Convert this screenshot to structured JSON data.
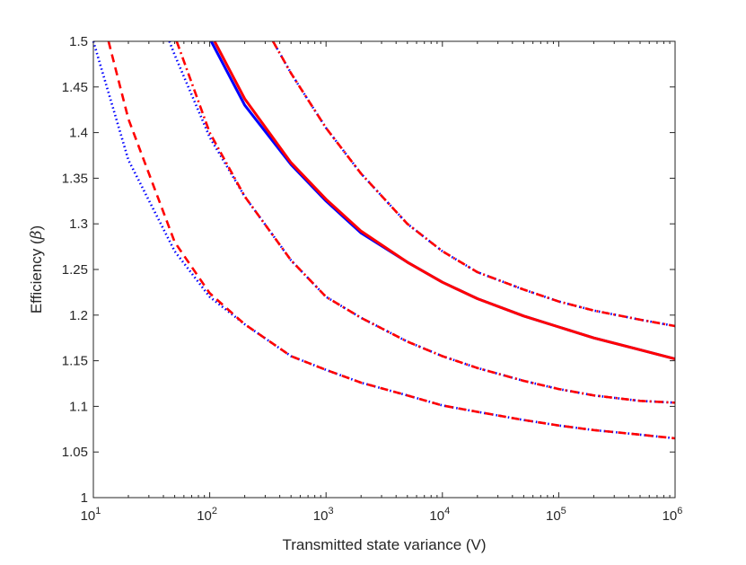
{
  "chart_data": {
    "type": "line",
    "xlabel": "Transmitted state variance (V)",
    "ylabel_text": "Efficiency (",
    "ylabel_symbol": "β",
    "ylabel_close": ")",
    "xscale": "log",
    "xlim": [
      10,
      1000000
    ],
    "ylim": [
      1,
      1.5
    ],
    "grid": false,
    "legend": "none",
    "x_ticks": [
      {
        "base": "10",
        "exp": "1",
        "value": 10
      },
      {
        "base": "10",
        "exp": "2",
        "value": 100
      },
      {
        "base": "10",
        "exp": "3",
        "value": 1000
      },
      {
        "base": "10",
        "exp": "4",
        "value": 10000
      },
      {
        "base": "10",
        "exp": "5",
        "value": 100000
      },
      {
        "base": "10",
        "exp": "6",
        "value": 1000000
      }
    ],
    "y_ticks": [
      "1",
      "1.05",
      "1.1",
      "1.15",
      "1.2",
      "1.25",
      "1.3",
      "1.35",
      "1.4",
      "1.45",
      "1.5"
    ],
    "series": [
      {
        "color": "#0000ff",
        "style": "dotted",
        "x": [
          10,
          20,
          50,
          100,
          200,
          500,
          1000,
          2000,
          5000,
          10000,
          20000,
          50000,
          100000,
          200000,
          500000,
          1000000
        ],
        "y": [
          1.5,
          1.37,
          1.27,
          1.22,
          1.19,
          1.155,
          1.14,
          1.126,
          1.112,
          1.101,
          1.094,
          1.085,
          1.079,
          1.074,
          1.069,
          1.065
        ]
      },
      {
        "color": "#ff0000",
        "style": "dashed",
        "x": [
          13.5,
          20,
          50,
          100,
          200,
          500,
          1000,
          2000,
          5000,
          10000,
          20000,
          50000,
          100000,
          200000,
          500000,
          1000000
        ],
        "y": [
          1.5,
          1.415,
          1.28,
          1.224,
          1.19,
          1.155,
          1.14,
          1.126,
          1.112,
          1.101,
          1.094,
          1.085,
          1.079,
          1.074,
          1.069,
          1.065
        ]
      },
      {
        "color": "#0000ff",
        "style": "dotted",
        "x": [
          45,
          50,
          100,
          200,
          500,
          1000,
          2000,
          5000,
          10000,
          20000,
          50000,
          100000,
          200000,
          500000,
          1000000
        ],
        "y": [
          1.5,
          1.485,
          1.395,
          1.33,
          1.26,
          1.22,
          1.197,
          1.171,
          1.155,
          1.142,
          1.128,
          1.119,
          1.112,
          1.106,
          1.104
        ]
      },
      {
        "color": "#ff0000",
        "style": "dashdot",
        "x": [
          52,
          100,
          200,
          500,
          1000,
          2000,
          5000,
          10000,
          20000,
          50000,
          100000,
          200000,
          500000,
          1000000
        ],
        "y": [
          1.5,
          1.4,
          1.33,
          1.26,
          1.22,
          1.197,
          1.171,
          1.155,
          1.142,
          1.128,
          1.119,
          1.112,
          1.106,
          1.104
        ]
      },
      {
        "color": "#0000ff",
        "style": "solid",
        "x": [
          103,
          200,
          500,
          1000,
          2000,
          5000,
          10000,
          20000,
          50000,
          100000,
          200000,
          500000,
          1000000
        ],
        "y": [
          1.5,
          1.43,
          1.365,
          1.325,
          1.29,
          1.258,
          1.236,
          1.218,
          1.199,
          1.187,
          1.175,
          1.162,
          1.152
        ]
      },
      {
        "color": "#ff0000",
        "style": "solid",
        "x": [
          110,
          200,
          500,
          1000,
          2000,
          5000,
          10000,
          20000,
          50000,
          100000,
          200000,
          500000,
          1000000
        ],
        "y": [
          1.5,
          1.437,
          1.367,
          1.327,
          1.292,
          1.258,
          1.236,
          1.218,
          1.199,
          1.187,
          1.175,
          1.162,
          1.152
        ]
      },
      {
        "color": "#0000ff",
        "style": "dotted",
        "x": [
          350,
          500,
          1000,
          2000,
          5000,
          10000,
          20000,
          50000,
          100000,
          200000,
          500000,
          1000000
        ],
        "y": [
          1.5,
          1.465,
          1.405,
          1.355,
          1.3,
          1.27,
          1.247,
          1.228,
          1.215,
          1.205,
          1.195,
          1.188
        ]
      },
      {
        "color": "#ff0000",
        "style": "dashdot",
        "x": [
          350,
          500,
          1000,
          2000,
          5000,
          10000,
          20000,
          50000,
          100000,
          200000,
          500000,
          1000000
        ],
        "y": [
          1.5,
          1.465,
          1.405,
          1.355,
          1.3,
          1.27,
          1.247,
          1.228,
          1.215,
          1.205,
          1.195,
          1.188
        ]
      }
    ]
  }
}
